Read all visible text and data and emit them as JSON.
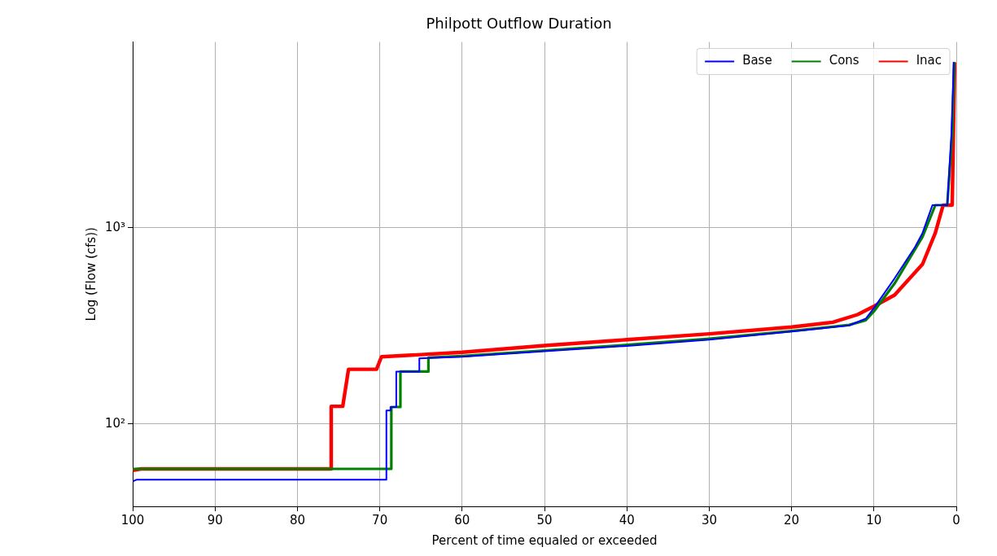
{
  "chart_data": {
    "type": "line",
    "title": "Philpott Outflow Duration",
    "xlabel": "Percent of time equaled or exceeded",
    "ylabel": "Log (Flow (cfs))",
    "xlim": [
      100,
      0
    ],
    "xticks": [
      100,
      90,
      80,
      70,
      60,
      50,
      40,
      30,
      20,
      10,
      0
    ],
    "ylim": [
      38,
      8870
    ],
    "yticks": [
      {
        "value": 100,
        "label": "10²"
      },
      {
        "value": 1000,
        "label": "10³"
      }
    ],
    "log": "y",
    "grid": true,
    "legend": "top right",
    "marker": "none",
    "line_style": "solid",
    "series": [
      {
        "name": "Base",
        "color": "#0000ff",
        "x": [
          100,
          99.5,
          69.2,
          69.2,
          68.7,
          68.7,
          68.0,
          68.0,
          65.2,
          65.2,
          60,
          50,
          40,
          30,
          20,
          13,
          11,
          10,
          7.5,
          5,
          4.1,
          2.9,
          1.1,
          0.6,
          0.3
        ],
        "values": [
          51,
          52,
          52,
          117,
          117,
          122,
          122,
          185,
          185,
          216,
          220,
          235,
          250,
          269,
          296,
          318,
          344,
          390,
          552,
          800,
          942,
          1306,
          1306,
          3000,
          7000
        ]
      },
      {
        "name": "Cons",
        "color": "#008000",
        "x": [
          100,
          68.6,
          68.6,
          67.5,
          67.5,
          64.1,
          64.1,
          60,
          50,
          40,
          30,
          20,
          13,
          11,
          10,
          7.5,
          4.1,
          2.55,
          1.1,
          0.5,
          0.25
        ],
        "values": [
          59,
          59,
          122,
          122,
          185,
          185,
          218,
          222,
          237,
          253,
          272,
          298,
          320,
          338,
          375,
          520,
          900,
          1306,
          1306,
          3000,
          7000
        ]
      },
      {
        "name": "Inac",
        "color": "#ff0000",
        "x": [
          100,
          99,
          75.9,
          75.9,
          74.5,
          73.8,
          70.4,
          69.8,
          60,
          50,
          40,
          30,
          20,
          15,
          12,
          10,
          7.5,
          4.1,
          2.55,
          1.6,
          0.5,
          0.2
        ],
        "values": [
          58,
          59,
          59,
          123,
          123,
          190,
          190,
          220,
          232,
          251,
          269,
          288,
          312,
          330,
          361,
          398,
          454,
          653,
          942,
          1306,
          1306,
          7000
        ]
      }
    ]
  }
}
